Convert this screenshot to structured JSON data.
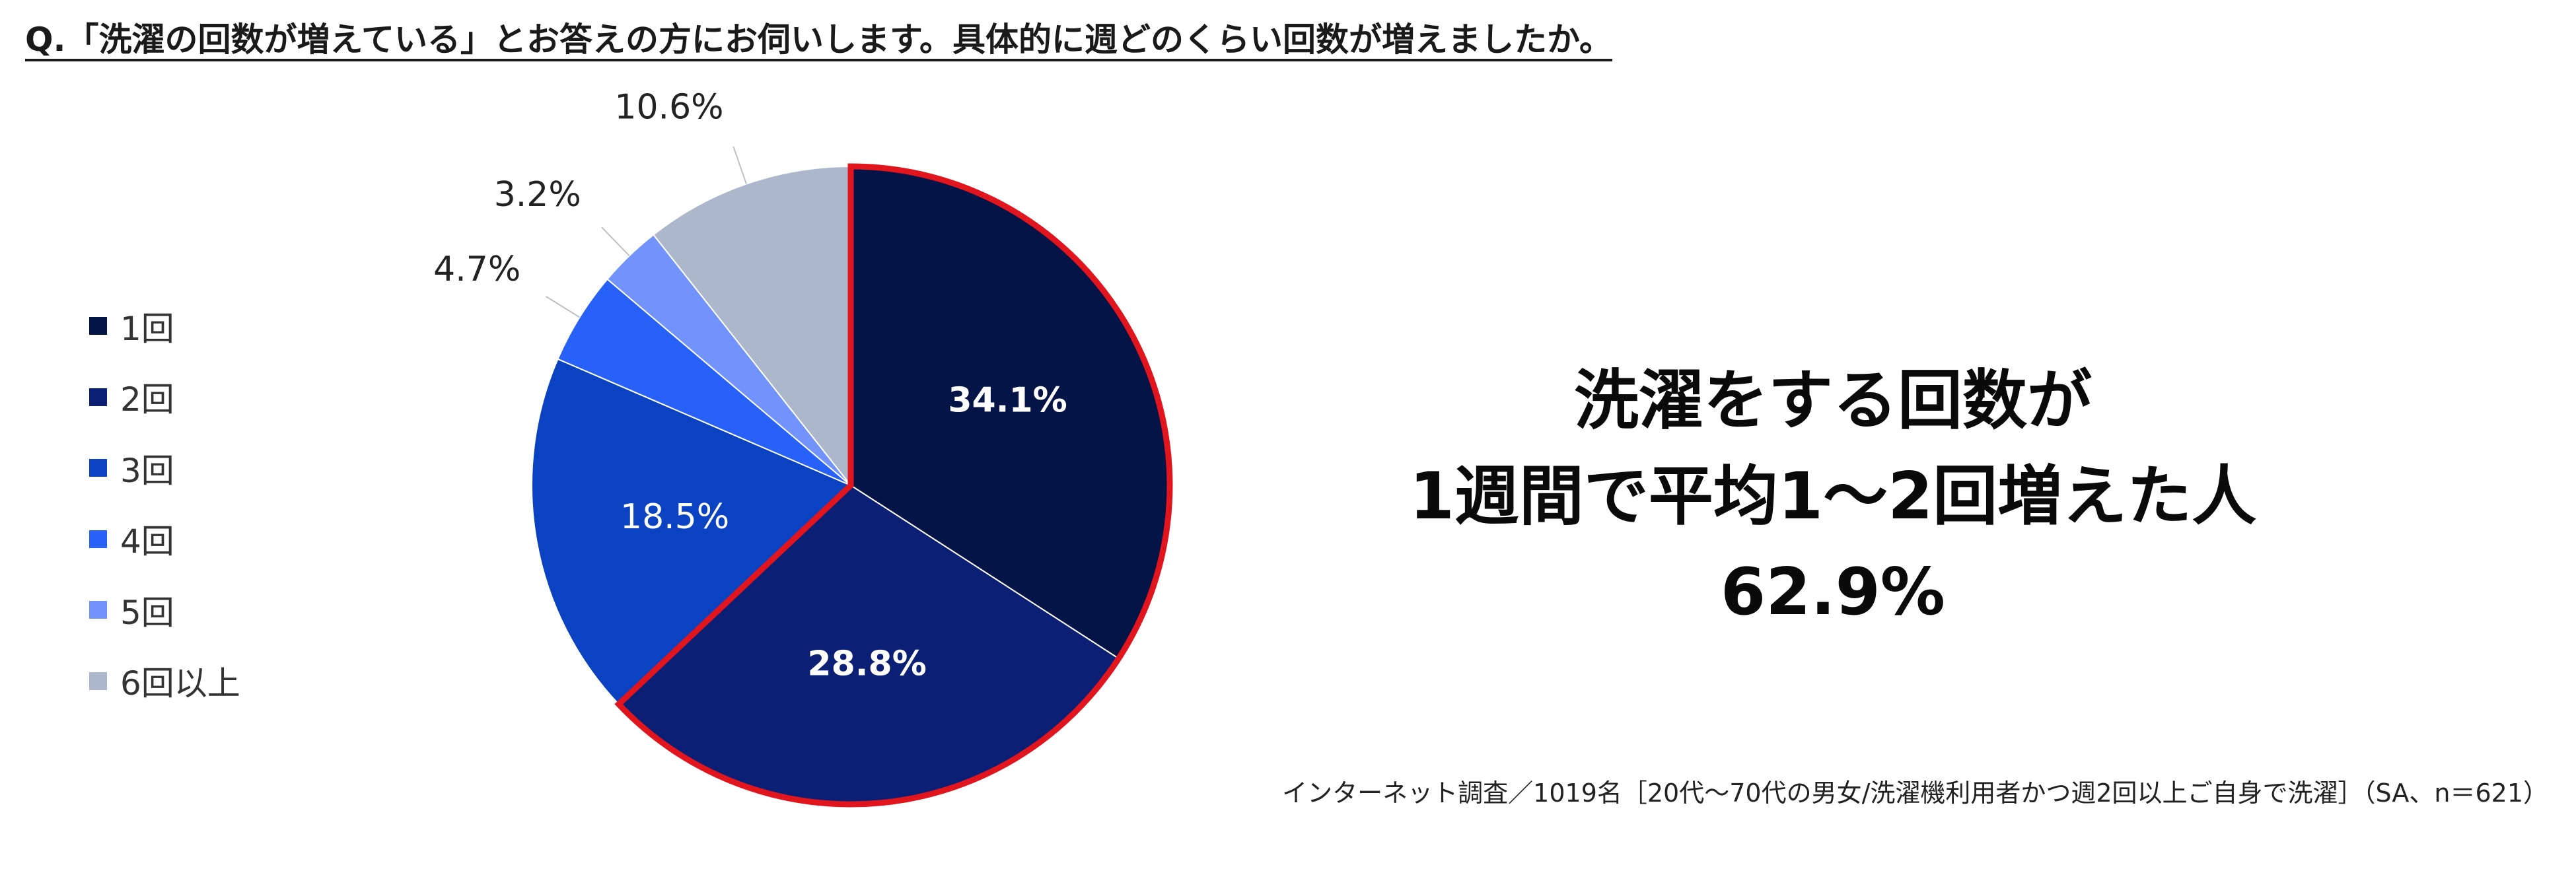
{
  "question": "Q.「洗濯の回数が増えている」とお答えの方にお伺いします。具体的に週どのくらい回数が増えましたか。",
  "chart_data": {
    "type": "pie",
    "categories": [
      "1回",
      "2回",
      "3回",
      "4回",
      "5回",
      "6回以上"
    ],
    "values": [
      34.1,
      28.8,
      18.5,
      4.7,
      3.2,
      10.6
    ],
    "labels": [
      "34.1%",
      "28.8%",
      "18.5%",
      "4.7%",
      "3.2%",
      "10.6%"
    ],
    "colors": [
      "#041447",
      "#0b2075",
      "#0a42c2",
      "#2861f7",
      "#7193fb",
      "#adb7cb"
    ],
    "highlighted_categories": [
      "1回",
      "2回"
    ],
    "highlight_color": "#e0151d",
    "legend_position": "left",
    "start": "12 o'clock, clockwise"
  },
  "callout": {
    "line1": "洗濯をする回数が",
    "line2": "1週間で平均1～2回増えた人",
    "value": "62.9%"
  },
  "footnote": "インターネット調査／1019名［20代～70代の男女/洗濯機利用者かつ週2回以上ご自身で洗濯］（SA、n＝621）"
}
